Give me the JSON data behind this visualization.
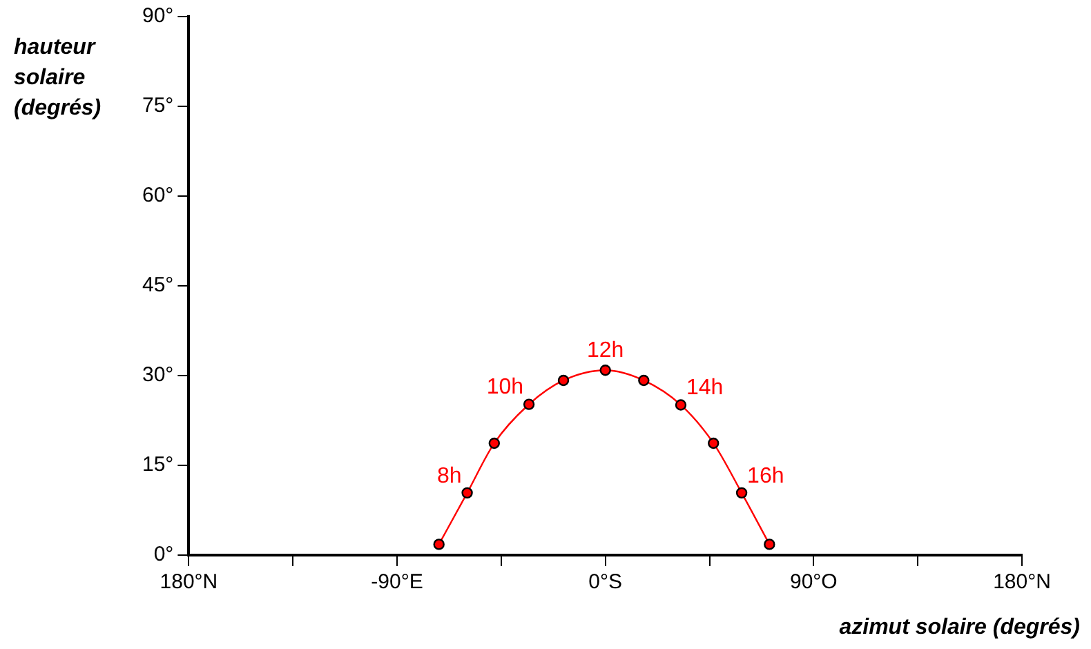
{
  "chart_data": {
    "type": "line",
    "xlabel": "azimut solaire (degrés)",
    "ylabel": "hauteur solaire (degrés)",
    "x": [
      -71.9,
      -59.7,
      -48,
      -33,
      -18.1,
      0,
      16.6,
      32.6,
      46.7,
      58.9,
      70.9
    ],
    "series": [
      {
        "color": "#ff0000",
        "values": [
          1.8,
          10.4,
          18.7,
          25.2,
          29.2,
          30.9,
          29.2,
          25.1,
          18.7,
          10.4,
          1.8
        ]
      }
    ],
    "xlim": [
      -180,
      180
    ],
    "xticks": [
      {
        "value": -180,
        "label": "180°N"
      },
      {
        "value": -135,
        "label": null
      },
      {
        "value": -90,
        "label": "-90°E"
      },
      {
        "value": -45,
        "label": null
      },
      {
        "value": 0,
        "label": "0°S"
      },
      {
        "value": 45,
        "label": null
      },
      {
        "value": 90,
        "label": "90°O"
      },
      {
        "value": 135,
        "label": null
      },
      {
        "value": 180,
        "label": "180°N"
      }
    ],
    "ylim": [
      0,
      90
    ],
    "yticks": [
      {
        "value": 0,
        "label": "0°"
      },
      {
        "value": 15,
        "label": "15°"
      },
      {
        "value": 30,
        "label": "30°"
      },
      {
        "value": 45,
        "label": "45°"
      },
      {
        "value": 60,
        "label": "60°"
      },
      {
        "value": 75,
        "label": "75°"
      },
      {
        "value": 90,
        "label": "90°"
      }
    ],
    "annotations": [
      {
        "text": "8h",
        "x": -59.7,
        "y": 10.4
      },
      {
        "text": "10h",
        "x": -33,
        "y": 25.2
      },
      {
        "text": "12h",
        "x": 0,
        "y": 30.9
      },
      {
        "text": "14h",
        "x": 32.6,
        "y": 25.1
      },
      {
        "text": "16h",
        "x": 58.9,
        "y": 10.4
      }
    ],
    "grid": false,
    "legend": false,
    "marker": "circle",
    "line_style": "solid"
  }
}
